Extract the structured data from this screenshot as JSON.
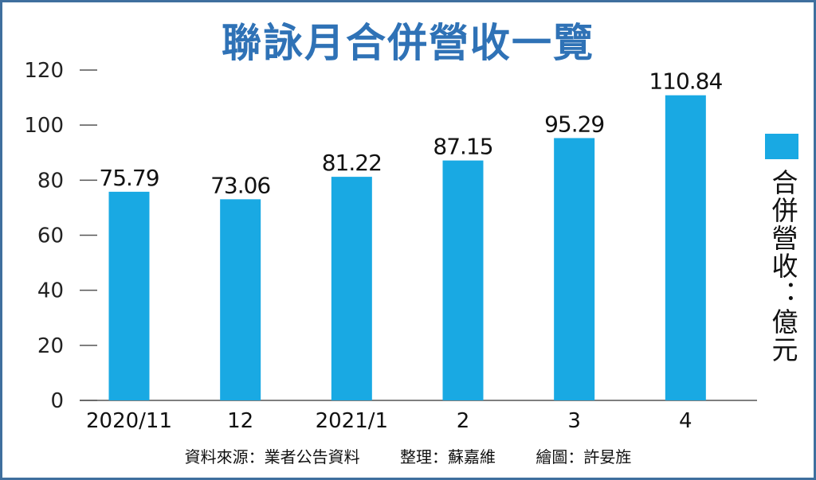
{
  "chart_data": {
    "type": "bar",
    "title": "聯詠月合併營收一覽",
    "categories": [
      "2020/11",
      "12",
      "2021/1",
      "2",
      "3",
      "4"
    ],
    "series": [
      {
        "name": "合併營收：億元",
        "values": [
          75.79,
          73.06,
          81.22,
          87.15,
          95.29,
          110.84
        ],
        "value_labels": [
          "75.79",
          "73.06",
          "81.22",
          "87.15",
          "95.29",
          "110.84"
        ]
      }
    ],
    "ylim": [
      0,
      120
    ],
    "yticks": [
      0,
      20,
      40,
      60,
      80,
      100,
      120
    ],
    "ytick_labels": [
      "0",
      "20",
      "40",
      "60",
      "80",
      "100",
      "120"
    ],
    "grid": false,
    "legend_position": "right",
    "bar_color": "#19a9e3"
  },
  "footer": {
    "source": "資料來源：業者公告資料",
    "editor": "整理：蘇嘉維",
    "illustrator": "繪圖：許妟旌"
  }
}
